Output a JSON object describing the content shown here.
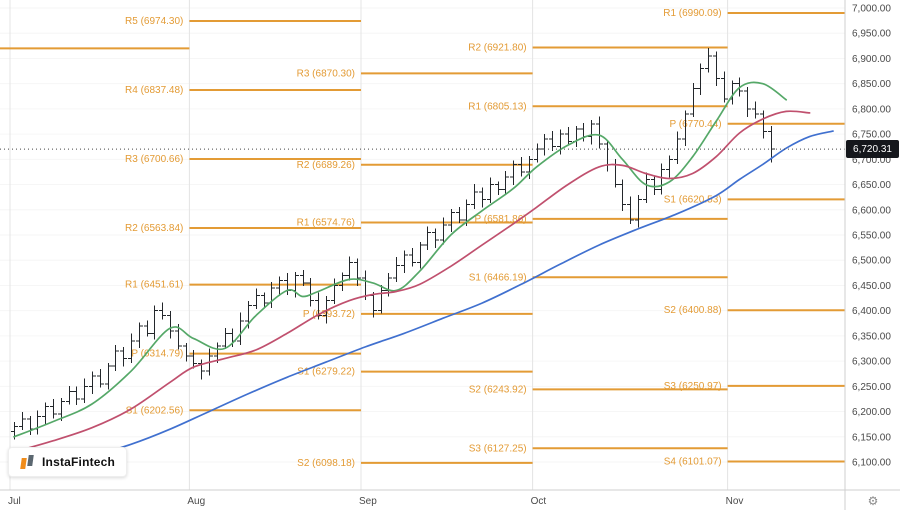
{
  "branding": {
    "logo_text": "InstaFintech"
  },
  "axis_corner": {
    "settings_glyph": "⚙"
  },
  "chart_data": {
    "type": "ohlc-bar",
    "title": "",
    "months": [
      "Jul",
      "Aug",
      "Sep",
      "Oct",
      "Nov"
    ],
    "month_start_bars": [
      0,
      23,
      45,
      67,
      92
    ],
    "price_axis": {
      "min": 6100,
      "max": 7000,
      "step": 50
    },
    "last_price": 6720.31,
    "last_price_label": "6,720.31",
    "candle_color": "#23272b",
    "pivot_color": "#e39b35",
    "grid_color": "#f6f6f6",
    "month_grid_color": "#e4e4e4",
    "axis_text_color": "#4a4a4a",
    "pivot_levels": [
      {
        "month_index": 0,
        "lines": [
          {
            "label": "",
            "value": 6920.0
          }
        ]
      },
      {
        "month_index": 1,
        "lines": [
          {
            "label": "R5 (6974.30)",
            "value": 6974.3
          },
          {
            "label": "R4 (6837.48)",
            "value": 6837.48
          },
          {
            "label": "R3 (6700.66)",
            "value": 6700.66
          },
          {
            "label": "R2 (6563.84)",
            "value": 6563.84
          },
          {
            "label": "R1 (6451.61)",
            "value": 6451.61
          },
          {
            "label": "P (6314.79)",
            "value": 6314.79
          },
          {
            "label": "S1 (6202.56)",
            "value": 6202.56
          }
        ]
      },
      {
        "month_index": 2,
        "lines": [
          {
            "label": "R3 (6870.30)",
            "value": 6870.3
          },
          {
            "label": "R2 (6689.26)",
            "value": 6689.26
          },
          {
            "label": "R1 (6574.76)",
            "value": 6574.76
          },
          {
            "label": "P (6393.72)",
            "value": 6393.72
          },
          {
            "label": "S1 (6279.22)",
            "value": 6279.22
          },
          {
            "label": "S2 (6098.18)",
            "value": 6098.18
          }
        ]
      },
      {
        "month_index": 3,
        "lines": [
          {
            "label": "R2 (6921.80)",
            "value": 6921.8
          },
          {
            "label": "R1 (6805.13)",
            "value": 6805.13
          },
          {
            "label": "P (6581.86)",
            "value": 6581.86
          },
          {
            "label": "S1 (6466.19)",
            "value": 6466.19
          },
          {
            "label": "S2 (6243.92)",
            "value": 6243.92
          },
          {
            "label": "S3 (6127.25)",
            "value": 6127.25
          }
        ]
      },
      {
        "month_index": 4,
        "lines": [
          {
            "label": "R1 (6990.09)",
            "value": 6990.09
          },
          {
            "label": "P (6770.44)",
            "value": 6770.44
          },
          {
            "label": "S1 (6620.53)",
            "value": 6620.53
          },
          {
            "label": "S2 (6400.88)",
            "value": 6400.88
          },
          {
            "label": "S3 (6250.97)",
            "value": 6250.97
          },
          {
            "label": "S4 (6101.07)",
            "value": 6101.07
          }
        ]
      }
    ],
    "moving_averages": [
      {
        "name": "ma-fast-green",
        "color": "#55a868",
        "points": [
          [
            0,
            6150
          ],
          [
            5,
            6180
          ],
          [
            10,
            6215
          ],
          [
            15,
            6280
          ],
          [
            20,
            6365
          ],
          [
            23,
            6345
          ],
          [
            27,
            6325
          ],
          [
            31,
            6390
          ],
          [
            35,
            6440
          ],
          [
            37,
            6428
          ],
          [
            39,
            6438
          ],
          [
            43,
            6462
          ],
          [
            46,
            6455
          ],
          [
            49,
            6440
          ],
          [
            52,
            6478
          ],
          [
            56,
            6550
          ],
          [
            60,
            6598
          ],
          [
            64,
            6642
          ],
          [
            67,
            6685
          ],
          [
            71,
            6728
          ],
          [
            75,
            6748
          ],
          [
            78,
            6700
          ],
          [
            81,
            6650
          ],
          [
            84,
            6655
          ],
          [
            87,
            6705
          ],
          [
            90,
            6775
          ],
          [
            93,
            6842
          ],
          [
            96,
            6850
          ],
          [
            99,
            6818
          ]
        ]
      },
      {
        "name": "ma-mid-red",
        "color": "#c0506e",
        "points": [
          [
            0,
            6120
          ],
          [
            5,
            6142
          ],
          [
            10,
            6168
          ],
          [
            15,
            6205
          ],
          [
            20,
            6258
          ],
          [
            23,
            6288
          ],
          [
            27,
            6305
          ],
          [
            31,
            6322
          ],
          [
            35,
            6355
          ],
          [
            39,
            6392
          ],
          [
            43,
            6420
          ],
          [
            46,
            6432
          ],
          [
            49,
            6438
          ],
          [
            52,
            6452
          ],
          [
            56,
            6488
          ],
          [
            60,
            6530
          ],
          [
            64,
            6572
          ],
          [
            67,
            6605
          ],
          [
            71,
            6650
          ],
          [
            75,
            6685
          ],
          [
            78,
            6688
          ],
          [
            81,
            6672
          ],
          [
            84,
            6662
          ],
          [
            87,
            6672
          ],
          [
            90,
            6705
          ],
          [
            93,
            6752
          ],
          [
            96,
            6780
          ],
          [
            99,
            6795
          ],
          [
            102,
            6792
          ]
        ]
      },
      {
        "name": "ma-slow-blue",
        "color": "#4070cf",
        "points": [
          [
            0,
            6085
          ],
          [
            5,
            6098
          ],
          [
            10,
            6112
          ],
          [
            15,
            6135
          ],
          [
            20,
            6165
          ],
          [
            25,
            6200
          ],
          [
            30,
            6235
          ],
          [
            35,
            6268
          ],
          [
            40,
            6298
          ],
          [
            45,
            6328
          ],
          [
            50,
            6355
          ],
          [
            55,
            6385
          ],
          [
            60,
            6415
          ],
          [
            65,
            6452
          ],
          [
            70,
            6492
          ],
          [
            75,
            6530
          ],
          [
            80,
            6562
          ],
          [
            85,
            6592
          ],
          [
            90,
            6628
          ],
          [
            93,
            6660
          ],
          [
            96,
            6690
          ],
          [
            99,
            6722
          ],
          [
            102,
            6745
          ],
          [
            105,
            6756
          ]
        ]
      }
    ],
    "bars": [
      [
        6160,
        6179,
        6145,
        6170
      ],
      [
        6170,
        6199,
        6163,
        6185
      ],
      [
        6185,
        6191,
        6154,
        6165
      ],
      [
        6165,
        6202,
        6155,
        6190
      ],
      [
        6190,
        6218,
        6174,
        6210
      ],
      [
        6210,
        6225,
        6186,
        6195
      ],
      [
        6195,
        6227,
        6181,
        6220
      ],
      [
        6220,
        6251,
        6214,
        6240
      ],
      [
        6240,
        6250,
        6213,
        6225
      ],
      [
        6225,
        6266,
        6217,
        6250
      ],
      [
        6250,
        6279,
        6235,
        6270
      ],
      [
        6270,
        6284,
        6248,
        6255
      ],
      [
        6255,
        6296,
        6244,
        6290
      ],
      [
        6290,
        6332,
        6280,
        6320
      ],
      [
        6320,
        6328,
        6289,
        6305
      ],
      [
        6305,
        6355,
        6296,
        6340
      ],
      [
        6340,
        6377,
        6326,
        6370
      ],
      [
        6370,
        6381,
        6349,
        6355
      ],
      [
        6355,
        6410,
        6343,
        6400
      ],
      [
        6400,
        6416,
        6382,
        6390
      ],
      [
        6390,
        6399,
        6345,
        6360
      ],
      [
        6360,
        6374,
        6323,
        6330
      ],
      [
        6330,
        6336,
        6299,
        6310
      ],
      [
        6310,
        6322,
        6285,
        6295
      ],
      [
        6295,
        6303,
        6264,
        6280
      ],
      [
        6280,
        6325,
        6271,
        6310
      ],
      [
        6310,
        6337,
        6296,
        6330
      ],
      [
        6330,
        6366,
        6324,
        6355
      ],
      [
        6355,
        6365,
        6328,
        6340
      ],
      [
        6340,
        6396,
        6332,
        6380
      ],
      [
        6380,
        6419,
        6365,
        6410
      ],
      [
        6410,
        6444,
        6403,
        6430
      ],
      [
        6430,
        6436,
        6404,
        6415
      ],
      [
        6415,
        6457,
        6405,
        6445
      ],
      [
        6445,
        6468,
        6429,
        6460
      ],
      [
        6460,
        6475,
        6431,
        6440
      ],
      [
        6440,
        6477,
        6426,
        6470
      ],
      [
        6470,
        6481,
        6449,
        6455
      ],
      [
        6455,
        6465,
        6408,
        6420
      ],
      [
        6420,
        6436,
        6382,
        6390
      ],
      [
        6390,
        6429,
        6375,
        6420
      ],
      [
        6420,
        6464,
        6413,
        6450
      ],
      [
        6450,
        6476,
        6439,
        6470
      ],
      [
        6470,
        6507,
        6460,
        6495
      ],
      [
        6495,
        6503,
        6449,
        6465
      ],
      [
        6465,
        6480,
        6421,
        6430
      ],
      [
        6430,
        6437,
        6386,
        6400
      ],
      [
        6400,
        6451,
        6394,
        6440
      ],
      [
        6440,
        6475,
        6428,
        6465
      ],
      [
        6465,
        6506,
        6457,
        6490
      ],
      [
        6490,
        6519,
        6475,
        6510
      ],
      [
        6510,
        6524,
        6488,
        6495
      ],
      [
        6495,
        6536,
        6484,
        6530
      ],
      [
        6530,
        6567,
        6520,
        6555
      ],
      [
        6555,
        6563,
        6524,
        6540
      ],
      [
        6540,
        6585,
        6531,
        6570
      ],
      [
        6570,
        6602,
        6556,
        6595
      ],
      [
        6595,
        6606,
        6574,
        6580
      ],
      [
        6580,
        6620,
        6568,
        6610
      ],
      [
        6610,
        6651,
        6602,
        6635
      ],
      [
        6635,
        6644,
        6605,
        6620
      ],
      [
        6620,
        6664,
        6613,
        6650
      ],
      [
        6650,
        6656,
        6629,
        6640
      ],
      [
        6640,
        6677,
        6630,
        6665
      ],
      [
        6665,
        6698,
        6649,
        6690
      ],
      [
        6690,
        6705,
        6666,
        6675
      ],
      [
        6675,
        6707,
        6661,
        6700
      ],
      [
        6700,
        6731,
        6694,
        6720
      ],
      [
        6720,
        6750,
        6708,
        6740
      ],
      [
        6740,
        6756,
        6717,
        6725
      ],
      [
        6725,
        6759,
        6710,
        6750
      ],
      [
        6750,
        6764,
        6728,
        6735
      ],
      [
        6735,
        6766,
        6724,
        6760
      ],
      [
        6760,
        6772,
        6735,
        6745
      ],
      [
        6745,
        6778,
        6729,
        6770
      ],
      [
        6770,
        6785,
        6721,
        6730
      ],
      [
        6730,
        6737,
        6676,
        6690
      ],
      [
        6690,
        6701,
        6644,
        6650
      ],
      [
        6650,
        6660,
        6598,
        6610
      ],
      [
        6610,
        6626,
        6572,
        6580
      ],
      [
        6580,
        6629,
        6565,
        6620
      ],
      [
        6620,
        6674,
        6613,
        6660
      ],
      [
        6660,
        6666,
        6629,
        6640
      ],
      [
        6640,
        6692,
        6630,
        6680
      ],
      [
        6680,
        6708,
        6664,
        6700
      ],
      [
        6700,
        6755,
        6691,
        6740
      ],
      [
        6740,
        6797,
        6726,
        6790
      ],
      [
        6790,
        6851,
        6784,
        6840
      ],
      [
        6840,
        6890,
        6828,
        6880
      ],
      [
        6880,
        6921,
        6872,
        6905
      ],
      [
        6905,
        6914,
        6845,
        6860
      ],
      [
        6860,
        6874,
        6813,
        6820
      ],
      [
        6820,
        6856,
        6809,
        6850
      ],
      [
        6850,
        6862,
        6825,
        6835
      ],
      [
        6835,
        6843,
        6784,
        6800
      ],
      [
        6800,
        6815,
        6781,
        6790
      ],
      [
        6790,
        6797,
        6741,
        6755
      ],
      [
        6755,
        6766,
        6694,
        6720.31
      ]
    ]
  }
}
